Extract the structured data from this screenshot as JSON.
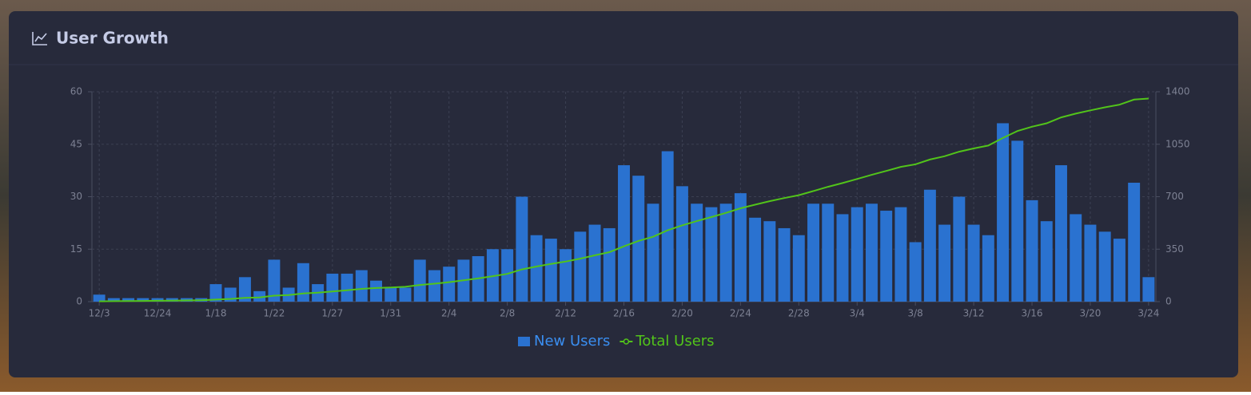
{
  "chart_data": {
    "type": "bar",
    "title": "User Growth",
    "categories": [
      "12/3",
      null,
      null,
      null,
      "12/24",
      null,
      null,
      null,
      "1/18",
      null,
      null,
      null,
      "1/22",
      null,
      null,
      null,
      "1/27",
      null,
      null,
      null,
      "1/31",
      null,
      null,
      null,
      "2/4",
      null,
      null,
      null,
      "2/8",
      null,
      null,
      null,
      "2/12",
      null,
      null,
      null,
      "2/16",
      null,
      null,
      null,
      "2/20",
      null,
      null,
      null,
      "2/24",
      null,
      null,
      null,
      "2/28",
      null,
      null,
      null,
      "3/4",
      null,
      null,
      null,
      "3/8",
      null,
      null,
      null,
      "3/12",
      null,
      null,
      null,
      "3/16",
      null,
      null,
      null,
      "3/20",
      null,
      null,
      null,
      "3/24"
    ],
    "series": [
      {
        "name": "New Users",
        "type": "bar",
        "color": "#2a72d0",
        "values": [
          2,
          1,
          1,
          1,
          1,
          1,
          1,
          1,
          5,
          4,
          7,
          3,
          12,
          4,
          11,
          5,
          8,
          8,
          9,
          6,
          4,
          4,
          12,
          9,
          10,
          12,
          13,
          15,
          15,
          30,
          19,
          18,
          15,
          20,
          22,
          21,
          39,
          36,
          28,
          43,
          33,
          28,
          27,
          28,
          31,
          24,
          23,
          21,
          19,
          28,
          28,
          25,
          27,
          28,
          26,
          27,
          17,
          32,
          22,
          30,
          22,
          19,
          51,
          46,
          29,
          23,
          39,
          25,
          22,
          20,
          18,
          34,
          7
        ]
      },
      {
        "name": "Total Users",
        "type": "line",
        "axis": "y2",
        "color": "#52c41a",
        "values": [
          2,
          3,
          4,
          5,
          6,
          7,
          8,
          9,
          14,
          18,
          25,
          28,
          40,
          44,
          55,
          60,
          68,
          76,
          85,
          91,
          95,
          99,
          111,
          120,
          130,
          142,
          155,
          170,
          185,
          215,
          234,
          252,
          267,
          287,
          309,
          330,
          369,
          405,
          433,
          476,
          509,
          537,
          564,
          592,
          623,
          647,
          670,
          691,
          710,
          738,
          766,
          791,
          818,
          846,
          872,
          899,
          916,
          948,
          970,
          1000,
          1022,
          1041,
          1092,
          1138,
          1167,
          1190,
          1229,
          1254,
          1276,
          1296,
          1314,
          1348,
          1355
        ]
      }
    ],
    "ylim": [
      0,
      60
    ],
    "yticks": [
      0,
      15,
      30,
      45,
      60
    ],
    "y2lim": [
      0,
      1400
    ],
    "y2ticks": [
      0,
      350,
      700,
      1050,
      1400
    ],
    "grid": true,
    "legend": "bottom"
  }
}
